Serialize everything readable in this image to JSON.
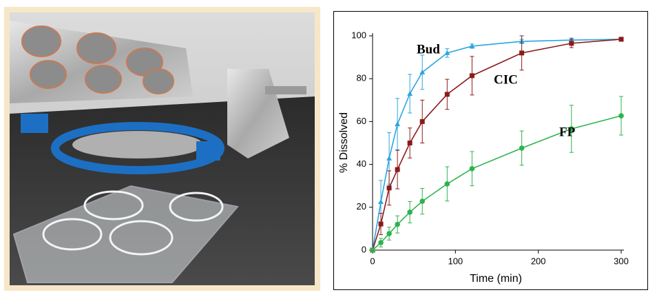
{
  "chart_data": {
    "type": "line",
    "xlabel": "Time (min)",
    "ylabel": "% Dissolved",
    "x": [
      0,
      10,
      20,
      30,
      45,
      60,
      90,
      120,
      180,
      240,
      300
    ],
    "xlim": [
      0,
      300
    ],
    "xticks": [
      0,
      100,
      200,
      300
    ],
    "ylim": [
      0,
      100
    ],
    "yticks": [
      0,
      20,
      40,
      60,
      80,
      100
    ],
    "grid": false,
    "series": [
      {
        "name": "Bud",
        "color": "#2aa6dd",
        "marker": "triangle",
        "values": [
          0,
          22.5,
          42.8,
          58.8,
          73,
          83,
          92,
          95.2,
          97.4,
          98,
          98.4
        ],
        "errors": [
          0,
          10,
          12,
          12,
          9,
          8,
          2,
          1,
          1,
          1,
          0.5
        ]
      },
      {
        "name": "CIC",
        "color": "#8b1a1a",
        "marker": "square",
        "values": [
          0,
          12.2,
          29,
          37.6,
          50,
          60,
          72.7,
          81.4,
          92,
          96.5,
          98.4
        ],
        "errors": [
          0,
          5,
          8,
          9,
          7,
          10,
          7,
          9,
          8,
          2,
          0.5
        ]
      },
      {
        "name": "FP",
        "color": "#2db34e",
        "marker": "circle",
        "values": [
          0,
          3.5,
          7.7,
          12,
          17.7,
          22.8,
          30.9,
          38,
          47.6,
          56.6,
          62.7
        ],
        "errors": [
          0,
          2,
          3,
          4,
          5,
          6,
          8,
          8,
          8,
          11,
          9
        ]
      }
    ]
  }
}
